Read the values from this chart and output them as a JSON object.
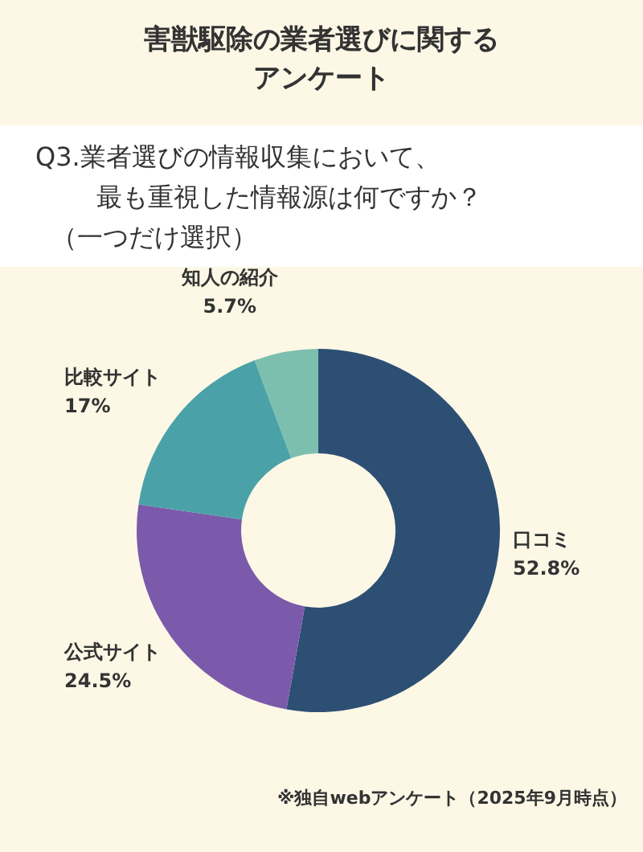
{
  "chart_data": {
    "type": "donut",
    "title": "害獣駆除の業者選びに関するアンケート",
    "subtitle": "Q3.業者選びの情報収集において、最も重視した情報源は何ですか？（一つだけ選択）",
    "categories": [
      "口コミ",
      "公式サイト",
      "比較サイト",
      "知人の紹介"
    ],
    "values": [
      52.8,
      24.5,
      17,
      5.7
    ],
    "colors": [
      "#2d4f74",
      "#7b5aab",
      "#4aa2a8",
      "#7cbfae"
    ],
    "value_labels": [
      "52.8%",
      "24.5%",
      "17%",
      "5.7%"
    ],
    "annotations": [
      "※独自webアンケート（2025年9月時点）"
    ]
  }
}
